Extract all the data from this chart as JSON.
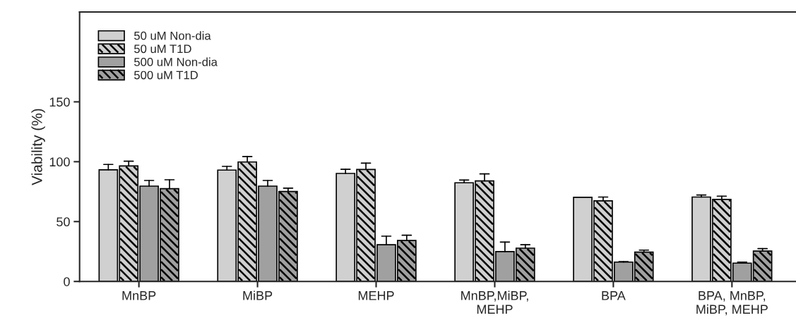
{
  "chart_data": {
    "type": "bar",
    "ylabel": "Viability (%)",
    "categories": [
      "MnBP",
      "MiBP",
      "MEHP",
      "MnBP,MiBP,\nMEHP",
      "BPA",
      "BPA, MnBP,\nMiBP, MEHP"
    ],
    "ylim": [
      0,
      225
    ],
    "yticks": [
      0,
      50,
      100,
      150
    ],
    "grid": false,
    "legend": "top left",
    "series": [
      {
        "name": "50 uM Non-dia",
        "color": "#d0d0d0",
        "values": [
          93.2,
          93,
          90.2,
          82.4,
          70.3,
          70.5
        ],
        "errors": [
          [
            93.2,
            97.7
          ],
          [
            93,
            96.1
          ],
          [
            90.2,
            93.7
          ],
          [
            82.4,
            84.7
          ],
          null,
          [
            70.5,
            72.2
          ]
        ]
      },
      {
        "name": "50 uM T1D",
        "color": "#d0d0d0",
        "values": [
          96.5,
          99.8,
          93.5,
          84,
          67.3,
          68.5
        ],
        "errors": [
          [
            96.5,
            100.4
          ],
          [
            99.8,
            104.3
          ],
          [
            93.5,
            98.8
          ],
          [
            84,
            89.8
          ],
          [
            67.3,
            70.5
          ],
          [
            68.5,
            71.2
          ]
        ]
      },
      {
        "name": "500 uM Non-dia",
        "color": "#a0a0a0",
        "values": [
          79.6,
          79.6,
          30.7,
          24.9,
          16.2,
          15.3
        ],
        "errors": [
          [
            79.6,
            84.3
          ],
          [
            79.6,
            84.3
          ],
          [
            30.7,
            37.8
          ],
          [
            24.9,
            32.9
          ],
          [
            16.2,
            16.6
          ],
          [
            15.3,
            16.1
          ]
        ]
      },
      {
        "name": "500 uM T1D",
        "color": "#a0a0a0",
        "values": [
          77.5,
          75.1,
          34.2,
          27.8,
          24.5,
          25.4
        ],
        "errors": [
          [
            77.5,
            84.9
          ],
          [
            75.1,
            77.9
          ],
          [
            34.2,
            38.6
          ],
          [
            27.8,
            30.7
          ],
          [
            24.5,
            26.2
          ],
          [
            25.4,
            27.4
          ]
        ]
      }
    ]
  }
}
